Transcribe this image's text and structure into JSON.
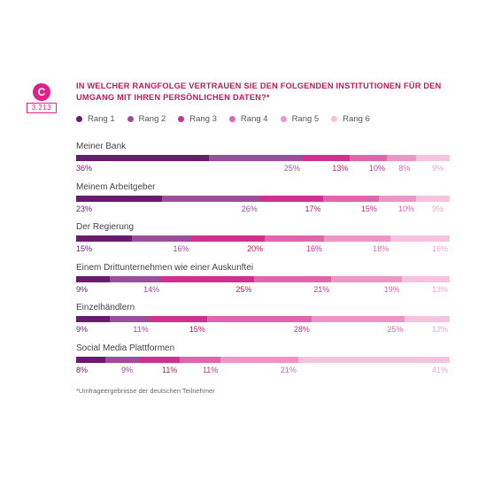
{
  "badge": {
    "letter": "C",
    "number": "3.213"
  },
  "title": "IN WELCHER RANGFOLGE VERTRAUEN SIE DEN FOLGENDEN INSTITUTIONEN FÜR DEN UMGANG MIT IHREN PERSÖNLICHEN DATEN?*",
  "footnote": "*Umfrageergebnisse der deutschen Teilnehmer",
  "colors": [
    "#6a1b6f",
    "#9c4d9c",
    "#d0308f",
    "#e065ad",
    "#ee95c8",
    "#f6c3de"
  ],
  "label_colors": [
    "#6a1b6f",
    "#9c4d9c",
    "#c2185b",
    "#d0308f",
    "#e065ad",
    "#f0a6cf"
  ],
  "chart_data": {
    "type": "bar",
    "stacked": true,
    "orientation": "horizontal",
    "title": "IN WELCHER RANGFOLGE VERTRAUEN SIE DEN FOLGENDEN INSTITUTIONEN FÜR DEN UMGANG MIT IHREN PERSÖNLICHEN DATEN?*",
    "legend_position": "top",
    "series_names": [
      "Rang 1",
      "Rang 2",
      "Rang 3",
      "Rang 4",
      "Rang 5",
      "Rang 6"
    ],
    "categories": [
      "Meiner Bank",
      "Meinem Arbeitgeber",
      "Der Regierung",
      "Einem Drittunternehmen wie einer Auskunftei",
      "Einzelhändlern",
      "Social Media Plattformen"
    ],
    "values": [
      [
        36,
        25,
        13,
        10,
        8,
        9
      ],
      [
        23,
        26,
        17,
        15,
        10,
        9
      ],
      [
        15,
        16,
        20,
        16,
        18,
        16
      ],
      [
        9,
        14,
        25,
        21,
        19,
        13
      ],
      [
        9,
        11,
        15,
        28,
        25,
        12
      ],
      [
        8,
        9,
        11,
        11,
        21,
        41
      ]
    ],
    "value_suffix": "%"
  }
}
